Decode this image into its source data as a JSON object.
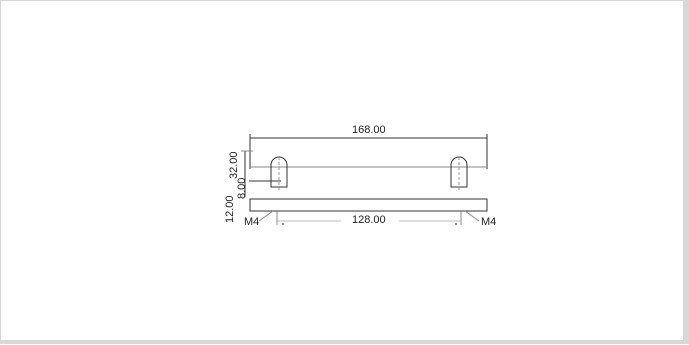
{
  "drawing": {
    "overall_length": "168.00",
    "hole_spacing": "128.00",
    "height": "32.00",
    "bar_thickness": "8.00",
    "leg_dim": "12.00",
    "thread_left": "M4",
    "thread_right": "M4",
    "line_color": "#333333",
    "border_color": "#d6d6d6"
  }
}
